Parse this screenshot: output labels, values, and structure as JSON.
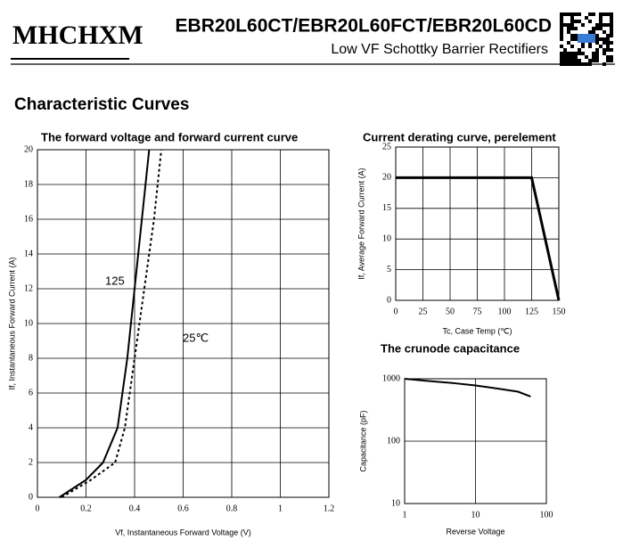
{
  "header": {
    "logo": "MHCHXM",
    "title": "EBR20L60CT/EBR20L60FCT/EBR20L60CD",
    "subtitle": "Low VF Schottky Barrier Rectifiers"
  },
  "section_title": "Characteristic Curves",
  "chart_data": [
    {
      "type": "line",
      "title": "The forward voltage and forward current curve",
      "x_label": "Vf, Instantaneous Forward Voltage (V)",
      "y_label": "If, Instantaneous Forward Current (A)",
      "xlim": [
        0,
        1.2
      ],
      "xticks": [
        0,
        0.2,
        0.4,
        0.6,
        0.8,
        1,
        1.2
      ],
      "ylim": [
        0,
        20
      ],
      "yticks": [
        0,
        2,
        4,
        6,
        8,
        10,
        12,
        14,
        16,
        18,
        20
      ],
      "grid": true,
      "series": [
        {
          "name": "125",
          "color": "#000000",
          "line_style": "solid",
          "x": [
            0.09,
            0.2,
            0.27,
            0.33,
            0.34,
            0.37,
            0.4,
            0.43,
            0.46
          ],
          "values": [
            0,
            1,
            2,
            4,
            5,
            8,
            12,
            16,
            20
          ]
        },
        {
          "name": "25℃",
          "color": "#000000",
          "line_style": "dotted",
          "x": [
            0.1,
            0.22,
            0.32,
            0.36,
            0.38,
            0.4,
            0.44,
            0.48,
            0.51
          ],
          "values": [
            0,
            1,
            2,
            4,
            6,
            8,
            12,
            16,
            20
          ]
        }
      ]
    },
    {
      "type": "line",
      "title": "Current derating curve, perelement",
      "x_label": "Tc, Case Temp (℃)",
      "y_label": "If, Average Forward Current (A)",
      "xlim": [
        0,
        150
      ],
      "xticks": [
        0,
        25,
        50,
        75,
        100,
        125,
        150
      ],
      "ylim": [
        0,
        25
      ],
      "yticks": [
        0,
        5,
        10,
        15,
        20,
        25
      ],
      "grid": true,
      "series": [
        {
          "color": "#000000",
          "line_style": "solid",
          "x": [
            0,
            125,
            150
          ],
          "values": [
            20,
            20,
            0
          ]
        }
      ]
    },
    {
      "type": "line",
      "title": "The crunode capacitance",
      "x_label": "Reverse Voltage",
      "y_label": "Capacitance (pF)",
      "xlog": true,
      "ylog": true,
      "xlim": [
        1,
        100
      ],
      "xticks": [
        1,
        10,
        100
      ],
      "ylim": [
        10,
        1000
      ],
      "yticks": [
        10,
        100,
        1000
      ],
      "grid": true,
      "series": [
        {
          "color": "#000000",
          "line_style": "solid",
          "x": [
            1,
            2,
            5,
            10,
            20,
            40,
            60
          ],
          "values": [
            1000,
            930,
            850,
            780,
            700,
            620,
            520
          ]
        }
      ]
    }
  ]
}
